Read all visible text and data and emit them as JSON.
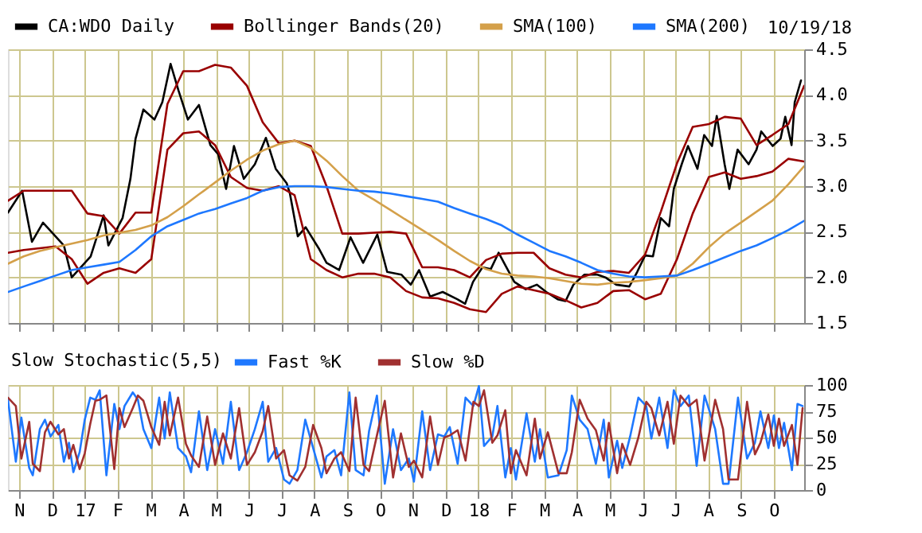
{
  "chart_data": [
    {
      "type": "line",
      "legend": "top",
      "grid": true,
      "tick_labels": "y",
      "annotations": [
        "10/19/18"
      ],
      "xlim": [
        2016.805,
        2018.827
      ],
      "xticks": [
        {
          "value": 2016.833,
          "label": null
        },
        {
          "value": 2016.917,
          "label": null
        },
        {
          "value": 2017.0,
          "label": null
        },
        {
          "value": 2017.083,
          "label": null
        },
        {
          "value": 2017.167,
          "label": null
        },
        {
          "value": 2017.25,
          "label": null
        },
        {
          "value": 2017.333,
          "label": null
        },
        {
          "value": 2017.417,
          "label": null
        },
        {
          "value": 2017.5,
          "label": null
        },
        {
          "value": 2017.583,
          "label": null
        },
        {
          "value": 2017.667,
          "label": null
        },
        {
          "value": 2017.75,
          "label": null
        },
        {
          "value": 2017.833,
          "label": null
        },
        {
          "value": 2017.917,
          "label": null
        },
        {
          "value": 2018.0,
          "label": null
        },
        {
          "value": 2018.083,
          "label": null
        },
        {
          "value": 2018.167,
          "label": null
        },
        {
          "value": 2018.25,
          "label": null
        },
        {
          "value": 2018.333,
          "label": null
        },
        {
          "value": 2018.417,
          "label": null
        },
        {
          "value": 2018.5,
          "label": null
        },
        {
          "value": 2018.583,
          "label": null
        },
        {
          "value": 2018.667,
          "label": null
        },
        {
          "value": 2018.75,
          "label": null
        }
      ],
      "ylim": [
        1.5,
        4.5
      ],
      "yticks": [
        {
          "value": 1.5,
          "label": "1.5"
        },
        {
          "value": 2,
          "label": "2.0"
        },
        {
          "value": 2.5,
          "label": "2.5"
        },
        {
          "value": 3,
          "label": "3.0"
        },
        {
          "value": 3.5,
          "label": "3.5"
        },
        {
          "value": 4,
          "label": "4.0"
        },
        {
          "value": 4.5,
          "label": "4.5"
        }
      ],
      "x": [
        2016.805,
        2016.845,
        2016.886,
        2016.926,
        2016.967,
        2017.007,
        2017.048,
        2017.088,
        2017.129,
        2017.169,
        2017.21,
        2017.25,
        2017.29,
        2017.331,
        2017.371,
        2017.412,
        2017.452,
        2017.493,
        2017.533,
        2017.574,
        2017.614,
        2017.654,
        2017.695,
        2017.735,
        2017.776,
        2017.816,
        2017.857,
        2017.897,
        2017.938,
        2017.978,
        2018.019,
        2018.059,
        2018.099,
        2018.14,
        2018.18,
        2018.221,
        2018.261,
        2018.302,
        2018.342,
        2018.382,
        2018.423,
        2018.463,
        2018.504,
        2018.544,
        2018.585,
        2018.625,
        2018.666,
        2018.706,
        2018.746,
        2018.787,
        2018.827
      ],
      "series": [
        {
          "name": "CA:WDO Daily",
          "color": "#000000",
          "x": [
            2016.805,
            2016.841,
            2016.866,
            2016.894,
            2016.947,
            2016.967,
            2017.015,
            2017.048,
            2017.06,
            2017.096,
            2017.116,
            2017.129,
            2017.149,
            2017.177,
            2017.197,
            2017.218,
            2017.238,
            2017.262,
            2017.29,
            2017.319,
            2017.339,
            2017.359,
            2017.379,
            2017.404,
            2017.432,
            2017.46,
            2017.485,
            2017.513,
            2017.521,
            2017.541,
            2017.561,
            2017.594,
            2017.614,
            2017.646,
            2017.675,
            2017.707,
            2017.743,
            2017.768,
            2017.804,
            2017.828,
            2017.849,
            2017.877,
            2017.909,
            2017.946,
            2017.966,
            2017.986,
            2018.01,
            2018.031,
            2018.051,
            2018.071,
            2018.091,
            2018.12,
            2018.148,
            2018.172,
            2018.201,
            2018.221,
            2018.241,
            2018.269,
            2018.302,
            2018.322,
            2018.35,
            2018.383,
            2018.403,
            2018.423,
            2018.443,
            2018.463,
            2018.484,
            2018.496,
            2018.516,
            2018.532,
            2018.556,
            2018.573,
            2018.593,
            2018.605,
            2018.625,
            2018.637,
            2018.658,
            2018.686,
            2018.706,
            2018.718,
            2018.747,
            2018.767,
            2018.779,
            2018.795,
            2018.803,
            2018.819
          ],
          "values": [
            2.71,
            2.95,
            2.39,
            2.6,
            2.35,
            2.0,
            2.23,
            2.68,
            2.35,
            2.65,
            3.08,
            3.52,
            3.84,
            3.73,
            3.92,
            4.34,
            4.05,
            3.73,
            3.89,
            3.45,
            3.35,
            2.97,
            3.44,
            3.08,
            3.24,
            3.53,
            3.19,
            3.03,
            2.92,
            2.45,
            2.55,
            2.32,
            2.16,
            2.08,
            2.44,
            2.16,
            2.47,
            2.06,
            2.03,
            1.92,
            2.08,
            1.79,
            1.84,
            1.76,
            1.71,
            1.95,
            2.11,
            2.09,
            2.27,
            2.11,
            1.95,
            1.87,
            1.92,
            1.84,
            1.76,
            1.74,
            1.92,
            2.03,
            2.03,
            2.0,
            1.92,
            1.9,
            2.06,
            2.24,
            2.23,
            2.65,
            2.56,
            2.97,
            3.24,
            3.44,
            3.19,
            3.56,
            3.44,
            3.77,
            3.24,
            2.97,
            3.4,
            3.24,
            3.4,
            3.6,
            3.44,
            3.52,
            3.76,
            3.45,
            3.92,
            4.16
          ]
        },
        {
          "name": "Bollinger Bands(20)",
          "color": "#990000",
          "values": [
            2.84,
            2.95,
            2.95,
            2.95,
            2.95,
            2.7,
            2.67,
            2.48,
            2.71,
            2.71,
            3.9,
            4.26,
            4.26,
            4.33,
            4.3,
            4.1,
            3.7,
            3.47,
            3.5,
            3.44,
            3.0,
            2.48,
            2.48,
            2.49,
            2.5,
            2.48,
            2.11,
            2.11,
            2.08,
            2.0,
            2.19,
            2.26,
            2.27,
            2.27,
            2.1,
            2.03,
            2.0,
            2.06,
            2.07,
            2.05,
            2.25,
            2.72,
            3.25,
            3.65,
            3.68,
            3.76,
            3.74,
            3.45,
            3.56,
            3.68,
            4.1
          ]
        },
        {
          "color": "#990000",
          "values": [
            2.27,
            2.3,
            2.32,
            2.34,
            2.2,
            1.93,
            2.05,
            2.1,
            2.05,
            2.2,
            3.4,
            3.58,
            3.6,
            3.45,
            3.1,
            2.98,
            2.95,
            3.0,
            2.9,
            2.2,
            2.08,
            2.0,
            2.04,
            2.04,
            2.0,
            1.85,
            1.78,
            1.77,
            1.72,
            1.65,
            1.62,
            1.82,
            1.9,
            1.86,
            1.82,
            1.75,
            1.67,
            1.72,
            1.85,
            1.86,
            1.76,
            1.82,
            2.2,
            2.7,
            3.1,
            3.15,
            3.08,
            3.11,
            3.16,
            3.3,
            3.27
          ]
        },
        {
          "name": "SMA(100)",
          "color": "#d4a04a",
          "values": [
            2.15,
            2.23,
            2.29,
            2.33,
            2.37,
            2.41,
            2.46,
            2.49,
            2.52,
            2.57,
            2.66,
            2.78,
            2.91,
            3.04,
            3.17,
            3.29,
            3.39,
            3.46,
            3.5,
            3.42,
            3.28,
            3.11,
            2.95,
            2.85,
            2.74,
            2.63,
            2.52,
            2.41,
            2.29,
            2.18,
            2.09,
            2.04,
            2.02,
            2.01,
            1.99,
            1.96,
            1.93,
            1.92,
            1.94,
            1.95,
            1.97,
            1.99,
            2.02,
            2.15,
            2.33,
            2.48,
            2.6,
            2.72,
            2.84,
            3.02,
            3.22
          ]
        },
        {
          "name": "SMA(200)",
          "color": "#1e78ff",
          "values": [
            1.84,
            1.9,
            1.96,
            2.02,
            2.08,
            2.11,
            2.14,
            2.17,
            2.3,
            2.45,
            2.56,
            2.63,
            2.7,
            2.75,
            2.81,
            2.87,
            2.95,
            2.99,
            3.0,
            3.0,
            2.99,
            2.97,
            2.95,
            2.94,
            2.92,
            2.89,
            2.86,
            2.83,
            2.76,
            2.7,
            2.64,
            2.57,
            2.47,
            2.38,
            2.29,
            2.23,
            2.16,
            2.08,
            2.04,
            2.01,
            2.0,
            2.01,
            2.02,
            2.08,
            2.15,
            2.22,
            2.29,
            2.35,
            2.43,
            2.52,
            2.62
          ]
        }
      ]
    },
    {
      "type": "line",
      "legend": "top",
      "grid": true,
      "legend_title": "Slow Stochastic(5,5)",
      "xlim": [
        2016.805,
        2018.827
      ],
      "xticks": [
        {
          "value": 2016.833,
          "label": "N"
        },
        {
          "value": 2016.917,
          "label": "D"
        },
        {
          "value": 2017.0,
          "label": "17"
        },
        {
          "value": 2017.083,
          "label": "F"
        },
        {
          "value": 2017.167,
          "label": "M"
        },
        {
          "value": 2017.25,
          "label": "A"
        },
        {
          "value": 2017.333,
          "label": "M"
        },
        {
          "value": 2017.417,
          "label": "J"
        },
        {
          "value": 2017.5,
          "label": "J"
        },
        {
          "value": 2017.583,
          "label": "A"
        },
        {
          "value": 2017.667,
          "label": "S"
        },
        {
          "value": 2017.75,
          "label": "O"
        },
        {
          "value": 2017.833,
          "label": "N"
        },
        {
          "value": 2017.917,
          "label": "D"
        },
        {
          "value": 2018.0,
          "label": "18"
        },
        {
          "value": 2018.083,
          "label": "F"
        },
        {
          "value": 2018.167,
          "label": "M"
        },
        {
          "value": 2018.25,
          "label": "A"
        },
        {
          "value": 2018.333,
          "label": "M"
        },
        {
          "value": 2018.417,
          "label": "J"
        },
        {
          "value": 2018.5,
          "label": "J"
        },
        {
          "value": 2018.583,
          "label": "A"
        },
        {
          "value": 2018.667,
          "label": "S"
        },
        {
          "value": 2018.75,
          "label": "O"
        }
      ],
      "ylim": [
        0,
        100
      ],
      "yticks": [
        0,
        25,
        50,
        75,
        100
      ],
      "x": [
        2016.805,
        2016.825,
        2016.839,
        2016.859,
        2016.868,
        2016.886,
        2016.899,
        2016.913,
        2016.933,
        2016.947,
        2016.96,
        2016.971,
        2016.987,
        2017.0,
        2017.014,
        2017.027,
        2017.038,
        2017.055,
        2017.075,
        2017.088,
        2017.101,
        2017.122,
        2017.135,
        2017.149,
        2017.169,
        2017.189,
        2017.203,
        2017.216,
        2017.237,
        2017.257,
        2017.27,
        2017.29,
        2017.311,
        2017.331,
        2017.351,
        2017.371,
        2017.392,
        2017.412,
        2017.432,
        2017.452,
        2017.466,
        2017.486,
        2017.506,
        2017.52,
        2017.54,
        2017.56,
        2017.58,
        2017.601,
        2017.614,
        2017.634,
        2017.651,
        2017.672,
        2017.688,
        2017.708,
        2017.722,
        2017.742,
        2017.762,
        2017.783,
        2017.803,
        2017.823,
        2017.836,
        2017.857,
        2017.877,
        2017.897,
        2017.913,
        2017.927,
        2017.947,
        2017.967,
        2017.987,
        2018.001,
        2018.014,
        2018.035,
        2018.048,
        2018.068,
        2018.082,
        2018.095,
        2018.122,
        2018.143,
        2018.156,
        2018.176,
        2018.203,
        2018.224,
        2018.237,
        2018.257,
        2018.277,
        2018.298,
        2018.318,
        2018.331,
        2018.352,
        2018.365,
        2018.385,
        2018.406,
        2018.426,
        2018.439,
        2018.459,
        2018.48,
        2018.496,
        2018.513,
        2018.534,
        2018.554,
        2018.574,
        2018.601,
        2018.621,
        2018.635,
        2018.659,
        2018.682,
        2018.702,
        2018.716,
        2018.736,
        2018.75,
        2018.763,
        2018.776,
        2018.796,
        2018.81,
        2018.823
      ],
      "series": [
        {
          "name": "Fast %K",
          "color": "#1e78ff",
          "values": [
            86,
            27,
            69,
            21,
            14,
            58,
            67,
            51,
            62,
            27,
            45,
            17,
            36,
            67,
            88,
            86,
            95,
            14,
            82,
            58,
            80,
            93,
            86,
            58,
            40,
            88,
            49,
            93,
            40,
            32,
            17,
            75,
            19,
            58,
            25,
            84,
            19,
            36,
            58,
            84,
            27,
            40,
            10,
            6,
            19,
            67,
            40,
            12,
            32,
            38,
            14,
            93,
            19,
            14,
            56,
            90,
            6,
            58,
            19,
            30,
            8,
            75,
            19,
            53,
            51,
            60,
            25,
            88,
            80,
            99,
            42,
            51,
            80,
            12,
            40,
            10,
            73,
            27,
            58,
            12,
            14,
            38,
            90,
            67,
            58,
            25,
            67,
            12,
            47,
            21,
            51,
            88,
            80,
            49,
            88,
            40,
            95,
            80,
            90,
            23,
            90,
            58,
            6,
            6,
            88,
            30,
            45,
            75,
            40,
            71,
            40,
            64,
            19,
            82,
            80
          ]
        },
        {
          "name": "Slow %D",
          "color": "#a03030",
          "values": [
            88,
            80,
            30,
            65,
            25,
            18,
            55,
            65,
            53,
            58,
            30,
            43,
            20,
            35,
            63,
            85,
            86,
            90,
            20,
            78,
            60,
            78,
            90,
            85,
            60,
            43,
            84,
            52,
            88,
            44,
            33,
            22,
            70,
            24,
            54,
            30,
            78,
            24,
            36,
            56,
            80,
            30,
            38,
            14,
            9,
            22,
            62,
            40,
            16,
            30,
            36,
            18,
            88,
            24,
            18,
            52,
            85,
            12,
            54,
            22,
            28,
            12,
            70,
            24,
            50,
            52,
            57,
            28,
            84,
            80,
            95,
            45,
            52,
            76,
            16,
            38,
            14,
            68,
            30,
            55,
            16,
            16,
            36,
            86,
            68,
            57,
            28,
            64,
            16,
            44,
            24,
            50,
            84,
            78,
            52,
            84,
            44,
            90,
            80,
            86,
            28,
            86,
            58,
            10,
            10,
            84,
            34,
            45,
            72,
            42,
            68,
            42,
            62,
            24,
            78
          ]
        }
      ]
    }
  ]
}
